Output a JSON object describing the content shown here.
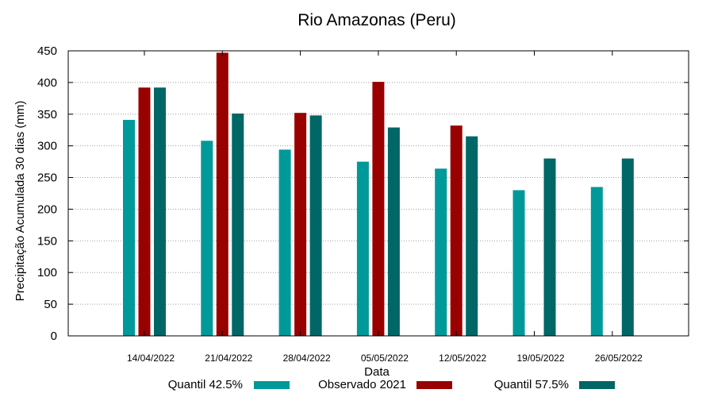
{
  "chart_data": {
    "type": "bar",
    "title": "Rio Amazonas (Peru)",
    "xlabel": "Data",
    "ylabel": "Precipitação Acumulada 30 dias (mm)",
    "ylim": [
      0,
      450
    ],
    "yticks": [
      0,
      50,
      100,
      150,
      200,
      250,
      300,
      350,
      400,
      450
    ],
    "grid": true,
    "legend_position": "bottom",
    "categories": [
      "14/04/2022",
      "21/04/2022",
      "28/04/2022",
      "05/05/2022",
      "12/05/2022",
      "19/05/2022",
      "26/05/2022"
    ],
    "series": [
      {
        "name": "Quantil 42.5%",
        "color": "#009999",
        "values": [
          341,
          308,
          294,
          275,
          264,
          230,
          235
        ]
      },
      {
        "name": "Observado 2021",
        "color": "#990000",
        "values": [
          392,
          447,
          352,
          401,
          332,
          null,
          null
        ]
      },
      {
        "name": "Quantil 57.5%",
        "color": "#006666",
        "values": [
          392,
          351,
          348,
          329,
          315,
          280,
          280
        ]
      }
    ]
  }
}
